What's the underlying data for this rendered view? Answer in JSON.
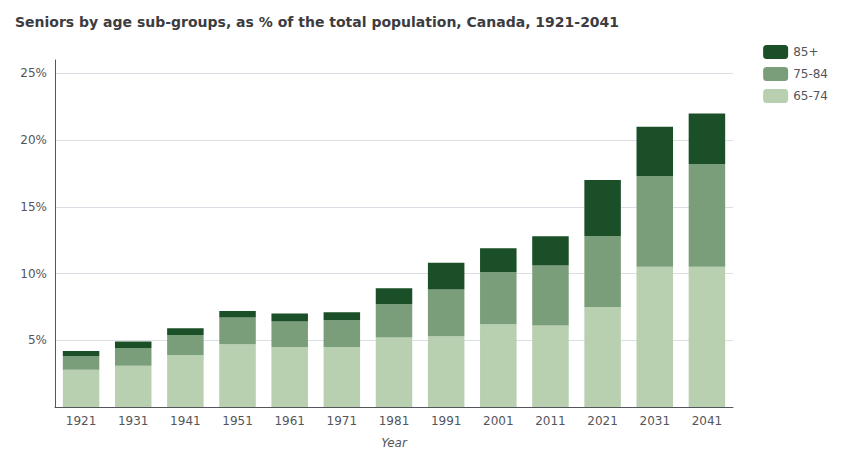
{
  "chart_data": {
    "type": "bar",
    "title": "Seniors by age sub-groups, as % of the total population, Canada, 1921-2041",
    "xlabel": "Year",
    "categories": [
      "1921",
      "1931",
      "1941",
      "1951",
      "1961",
      "1971",
      "1981",
      "1991",
      "2001",
      "2011",
      "2021",
      "2031",
      "2041"
    ],
    "series": [
      {
        "name": "65-74",
        "color": "#b8cfb0",
        "values": [
          2.8,
          3.1,
          3.9,
          4.7,
          4.5,
          4.5,
          5.2,
          5.3,
          6.2,
          6.1,
          7.5,
          10.5,
          10.5
        ]
      },
      {
        "name": "75-84",
        "color": "#7a9e7a",
        "values": [
          1.0,
          1.3,
          1.5,
          2.0,
          1.9,
          2.0,
          2.5,
          3.5,
          3.9,
          4.5,
          5.3,
          6.8,
          7.7
        ]
      },
      {
        "name": "85+",
        "color": "#1a4f27",
        "values": [
          0.4,
          0.5,
          0.5,
          0.5,
          0.6,
          0.6,
          1.2,
          2.0,
          1.8,
          2.2,
          4.2,
          3.7,
          3.8
        ]
      }
    ],
    "stacked": true,
    "ylim": [
      0,
      26
    ],
    "yticks": [
      {
        "value": 5,
        "label": "5%"
      },
      {
        "value": 10,
        "label": "10%"
      },
      {
        "value": 15,
        "label": "15%"
      },
      {
        "value": 20,
        "label": "20%"
      },
      {
        "value": 25,
        "label": "25%"
      }
    ],
    "grid": true,
    "legend": "upper right"
  }
}
